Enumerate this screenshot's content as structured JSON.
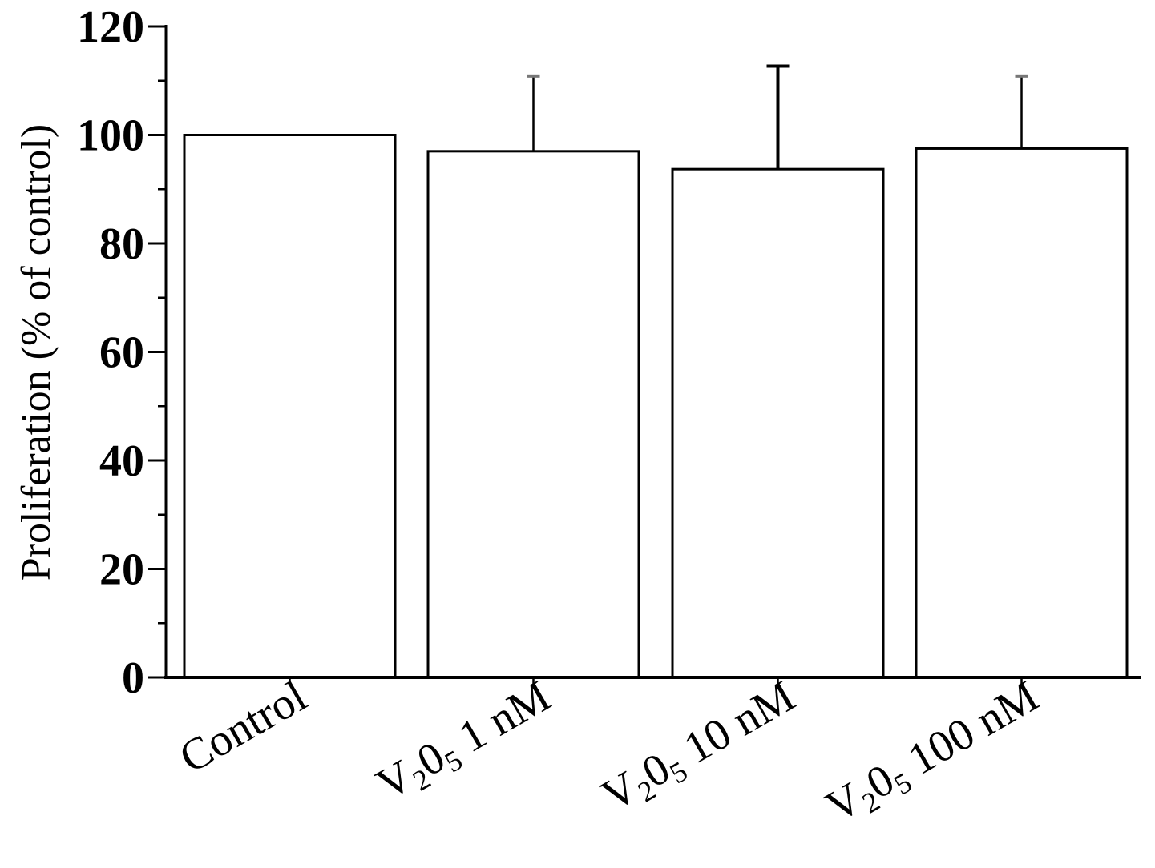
{
  "chart_data": {
    "type": "bar",
    "title": "",
    "xlabel": "",
    "ylabel": "Proliferation (% of control)",
    "ylim": [
      0,
      120
    ],
    "yticks": [
      0,
      20,
      40,
      60,
      80,
      100,
      120
    ],
    "ytick_labels": [
      "0",
      "20",
      "40",
      "60",
      "80",
      "100",
      "120"
    ],
    "categories": [
      {
        "name": "Control",
        "label_parts": [
          {
            "text": "Control",
            "sub": false
          }
        ]
      },
      {
        "name": "V205 1 nM",
        "label_parts": [
          {
            "text": "V",
            "sub": false
          },
          {
            "text": "2",
            "sub": true
          },
          {
            "text": "0",
            "sub": false
          },
          {
            "text": "5",
            "sub": true
          },
          {
            "text": " 1 nM",
            "sub": false
          }
        ]
      },
      {
        "name": "V205 10 nM",
        "label_parts": [
          {
            "text": "V",
            "sub": false
          },
          {
            "text": "2",
            "sub": true
          },
          {
            "text": "0",
            "sub": false
          },
          {
            "text": "5",
            "sub": true
          },
          {
            "text": " 10 nM",
            "sub": false
          }
        ]
      },
      {
        "name": "V205 100 nM",
        "label_parts": [
          {
            "text": "V",
            "sub": false
          },
          {
            "text": "2",
            "sub": true
          },
          {
            "text": "0",
            "sub": false
          },
          {
            "text": "5",
            "sub": true
          },
          {
            "text": " 100 nM",
            "sub": false
          }
        ]
      }
    ],
    "values": [
      100,
      97,
      93.7,
      97.5
    ],
    "error_upper": [
      null,
      110.8,
      112.7,
      110.8
    ],
    "bar_fill": "#ffffff",
    "bar_stroke": "#000000",
    "grid": false,
    "legend": "none"
  }
}
